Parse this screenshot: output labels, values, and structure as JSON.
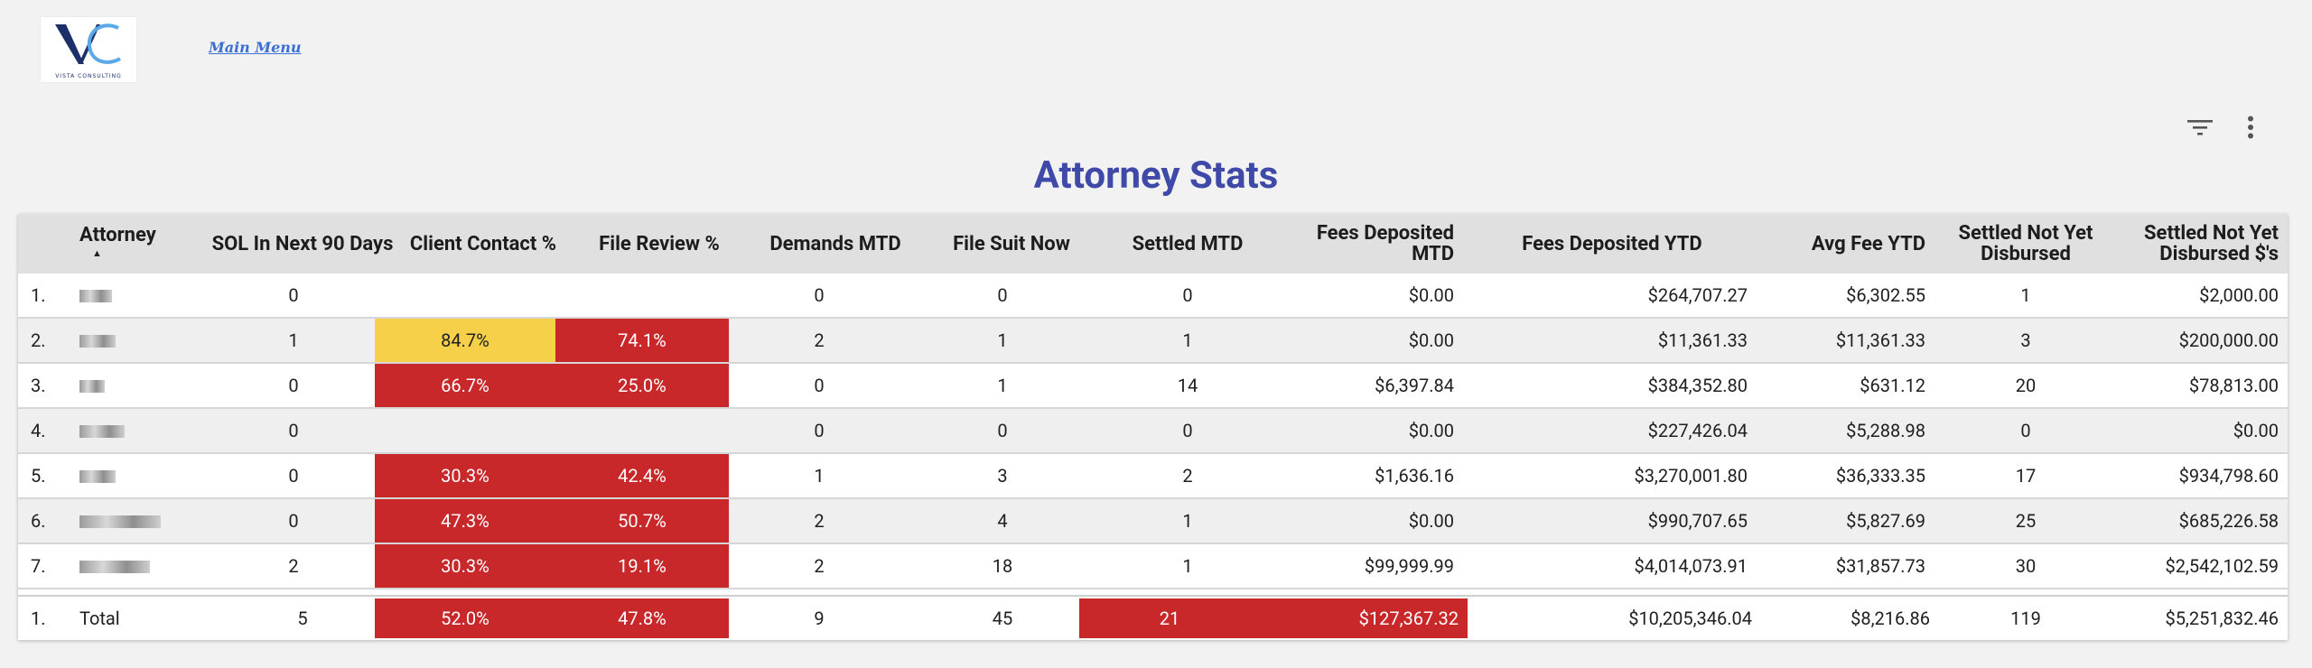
{
  "logo": {
    "text": "VISTA CONSULTING",
    "colors": {
      "primary": "#1c2f6b",
      "accent": "#5aa9e6"
    }
  },
  "main_menu": {
    "label": "Main Menu"
  },
  "toolbar": {
    "icons": [
      "filter-icon",
      "more-vert-icon"
    ]
  },
  "title": "Attorney Stats",
  "table": {
    "headers": [
      "",
      "Attorney",
      "SOL In Next 90 Days",
      "Client Contact %",
      "File Review %",
      "Demands MTD",
      "File Suit Now",
      "Settled MTD",
      "Fees Deposited MTD",
      "Fees Deposited YTD",
      "Avg Fee YTD",
      "Settled Not Yet Disbursed",
      "Settled Not Yet Disbursed $'s"
    ],
    "rows": [
      {
        "idx": "1.",
        "sol": "0",
        "contact": "",
        "review": "",
        "demands": "0",
        "suit": "0",
        "settled": "0",
        "fees_mtd": "$0.00",
        "fees_ytd": "$264,707.27",
        "avg_fee": "$6,302.55",
        "snyd": "1",
        "snyd_amt": "$2,000.00"
      },
      {
        "idx": "2.",
        "sol": "1",
        "contact": "84.7%",
        "review": "74.1%",
        "demands": "2",
        "suit": "1",
        "settled": "1",
        "fees_mtd": "$0.00",
        "fees_ytd": "$11,361.33",
        "avg_fee": "$11,361.33",
        "snyd": "3",
        "snyd_amt": "$200,000.00"
      },
      {
        "idx": "3.",
        "sol": "0",
        "contact": "66.7%",
        "review": "25.0%",
        "demands": "0",
        "suit": "1",
        "settled": "14",
        "fees_mtd": "$6,397.84",
        "fees_ytd": "$384,352.80",
        "avg_fee": "$631.12",
        "snyd": "20",
        "snyd_amt": "$78,813.00"
      },
      {
        "idx": "4.",
        "sol": "0",
        "contact": "",
        "review": "",
        "demands": "0",
        "suit": "0",
        "settled": "0",
        "fees_mtd": "$0.00",
        "fees_ytd": "$227,426.04",
        "avg_fee": "$5,288.98",
        "snyd": "0",
        "snyd_amt": "$0.00"
      },
      {
        "idx": "5.",
        "sol": "0",
        "contact": "30.3%",
        "review": "42.4%",
        "demands": "1",
        "suit": "3",
        "settled": "2",
        "fees_mtd": "$1,636.16",
        "fees_ytd": "$3,270,001.80",
        "avg_fee": "$36,333.35",
        "snyd": "17",
        "snyd_amt": "$934,798.60"
      },
      {
        "idx": "6.",
        "sol": "0",
        "contact": "47.3%",
        "review": "50.7%",
        "demands": "2",
        "suit": "4",
        "settled": "1",
        "fees_mtd": "$0.00",
        "fees_ytd": "$990,707.65",
        "avg_fee": "$5,827.69",
        "snyd": "25",
        "snyd_amt": "$685,226.58"
      },
      {
        "idx": "7.",
        "sol": "2",
        "contact": "30.3%",
        "review": "19.1%",
        "demands": "2",
        "suit": "18",
        "settled": "1",
        "fees_mtd": "$99,999.99",
        "fees_ytd": "$4,014,073.91",
        "avg_fee": "$31,857.73",
        "snyd": "30",
        "snyd_amt": "$2,542,102.59"
      }
    ],
    "total": {
      "idx": "1.",
      "label": "Total",
      "sol": "5",
      "contact": "52.0%",
      "review": "47.8%",
      "demands": "9",
      "suit": "45",
      "settled": "21",
      "fees_mtd": "$127,367.32",
      "fees_ytd": "$10,205,346.04",
      "avg_fee": "$8,216.86",
      "snyd": "119",
      "snyd_amt": "$5,251,832.46"
    },
    "colors": {
      "red": "#c9282b",
      "yellow": "#f6d049",
      "header_bg": "#e0e0e0",
      "title": "#3f4aa8"
    }
  }
}
